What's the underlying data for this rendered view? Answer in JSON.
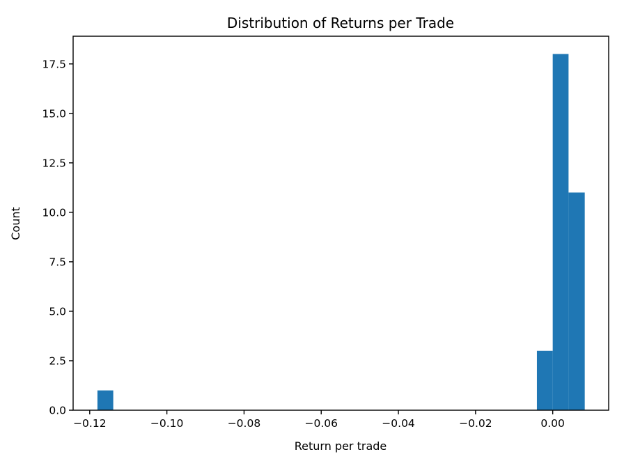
{
  "chart_data": {
    "type": "bar",
    "subtype": "histogram",
    "title": "Distribution of Returns per Trade",
    "xlabel": "Return per trade",
    "ylabel": "Count",
    "bar_color": "#1f77b4",
    "axis_color": "#000000",
    "text_color": "#000000",
    "background_color": "#ffffff",
    "grid": false,
    "legend": false,
    "legend_position": null,
    "xlim": [
      -0.1243,
      0.0145
    ],
    "ylim": [
      0,
      18.9
    ],
    "xticks": [
      {
        "value": -0.12,
        "label": "−0.12"
      },
      {
        "value": -0.1,
        "label": "−0.10"
      },
      {
        "value": -0.08,
        "label": "−0.08"
      },
      {
        "value": -0.06,
        "label": "−0.06"
      },
      {
        "value": -0.04,
        "label": "−0.04"
      },
      {
        "value": -0.02,
        "label": "−0.02"
      },
      {
        "value": 0.0,
        "label": "0.00"
      }
    ],
    "yticks": [
      {
        "value": 0,
        "label": "0.0"
      },
      {
        "value": 2.5,
        "label": "2.5"
      },
      {
        "value": 5,
        "label": "5.0"
      },
      {
        "value": 7.5,
        "label": "7.5"
      },
      {
        "value": 10,
        "label": "10.0"
      },
      {
        "value": 12.5,
        "label": "12.5"
      },
      {
        "value": 15,
        "label": "15.0"
      },
      {
        "value": 17.5,
        "label": "17.5"
      }
    ],
    "bins": [
      {
        "x0": -0.118,
        "x1": -0.1139,
        "count": 1
      },
      {
        "x0": -0.0041,
        "x1": 0.0,
        "count": 3
      },
      {
        "x0": 0.0,
        "x1": 0.0041,
        "count": 18
      },
      {
        "x0": 0.0041,
        "x1": 0.0083,
        "count": 11
      }
    ]
  }
}
